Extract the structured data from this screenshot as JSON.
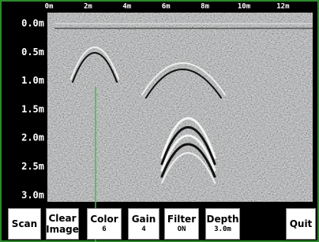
{
  "x_axis": {
    "labels": [
      "0m",
      "2m",
      "4m",
      "6m",
      "8m",
      "10m",
      "12m"
    ]
  },
  "y_axis": {
    "labels": [
      "0.0m",
      "0.5m",
      "1.0m",
      "1.5m",
      "2.0m",
      "2.5m",
      "3.0m"
    ]
  },
  "buttons": [
    {
      "lines": [
        "Scan"
      ]
    },
    {
      "lines": [
        "Clear",
        "Image"
      ]
    },
    {
      "lines": [
        "Color",
        "6"
      ]
    },
    {
      "lines": [
        "Gain",
        "4"
      ]
    },
    {
      "lines": [
        "Filter",
        "ON"
      ]
    },
    {
      "lines": [
        "Depth",
        "3.0m"
      ]
    },
    {
      "lines": [
        "Quit"
      ]
    }
  ]
}
